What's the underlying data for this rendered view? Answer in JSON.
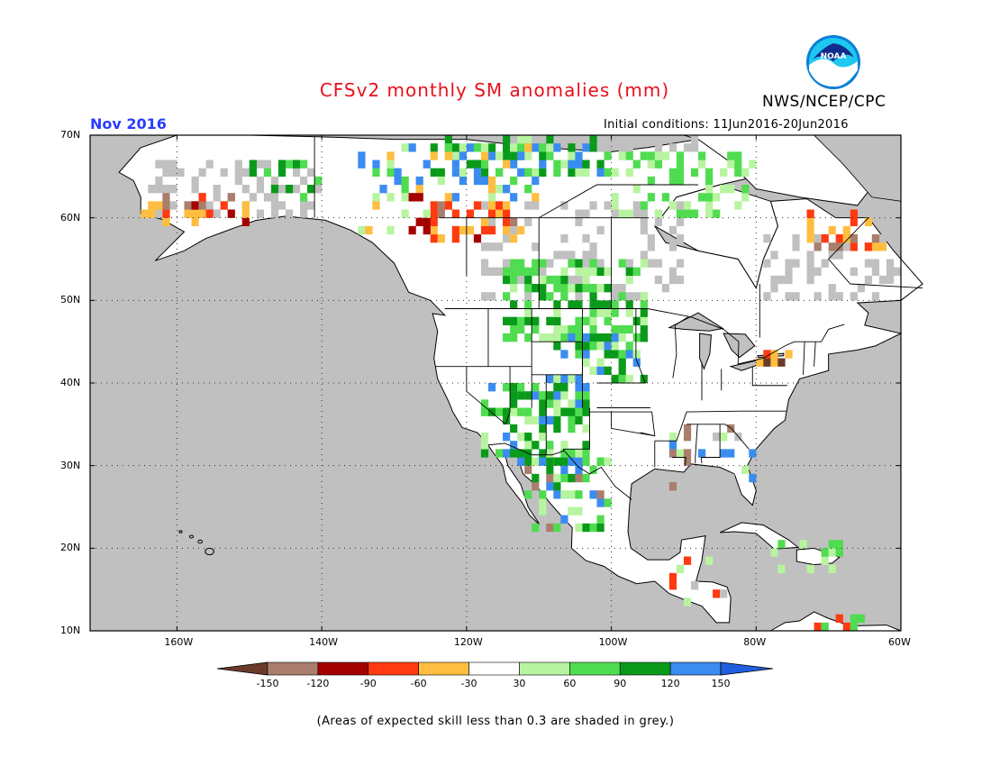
{
  "header": {
    "title": "CFSv2 monthly SM anomalies (mm)",
    "agency": "NWS/NCEP/CPC",
    "logo_text": "NOAA",
    "forecast_month": "Nov 2016",
    "initial_conditions": "Initial conditions: 11Jun2016-20Jun2016"
  },
  "map": {
    "lon_range": [
      -172,
      -60
    ],
    "lat_range": [
      10,
      70
    ],
    "lat_labels": [
      "70N",
      "60N",
      "50N",
      "40N",
      "30N",
      "20N",
      "10N"
    ],
    "lon_labels": [
      "160W",
      "140W",
      "120W",
      "100W",
      "80W",
      "60W"
    ],
    "background_color": "#c0c0c0",
    "coast_color": "#000000"
  },
  "colorbar": {
    "labels": [
      "-150",
      "-120",
      "-90",
      "-60",
      "-30",
      "30",
      "60",
      "90",
      "120",
      "150"
    ],
    "colors": [
      "#6b3b2a",
      "#a97e6c",
      "#a50000",
      "#ff3a10",
      "#ffbe40",
      "#ffffff",
      "#b8f4a0",
      "#50dc50",
      "#0a9a1a",
      "#3a8cf0",
      "#2060e0"
    ]
  },
  "footer": {
    "note": "(Areas of expected skill less than 0.3 are shaded in grey.)"
  }
}
